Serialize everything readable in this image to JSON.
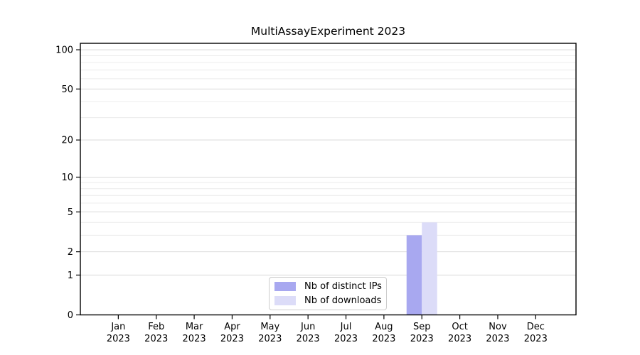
{
  "figure": {
    "title": "MultiAssayExperiment 2023"
  },
  "chart_data": {
    "type": "bar",
    "title": "MultiAssayExperiment 2023",
    "categories": [
      "Jan 2023",
      "Feb 2023",
      "Mar 2023",
      "Apr 2023",
      "May 2023",
      "Jun 2023",
      "Jul 2023",
      "Aug 2023",
      "Sep 2023",
      "Oct 2023",
      "Nov 2023",
      "Dec 2023"
    ],
    "series": [
      {
        "name": "Nb of distinct IPs",
        "color": "#a8a8f0",
        "values": [
          0,
          0,
          0,
          0,
          0,
          0,
          0,
          0,
          3,
          0,
          0,
          0
        ]
      },
      {
        "name": "Nb of downloads",
        "color": "#dcdcf8",
        "values": [
          0,
          0,
          0,
          0,
          0,
          0,
          0,
          0,
          4,
          0,
          0,
          0
        ]
      }
    ],
    "xlabel": "",
    "ylabel": "",
    "yscale": "log1p",
    "ylim": [
      0,
      112
    ],
    "yticks": [
      0,
      1,
      2,
      5,
      10,
      20,
      50,
      100
    ],
    "minor_gridlines": [
      3,
      4,
      6,
      7,
      8,
      9,
      30,
      40,
      60,
      70,
      80,
      90
    ],
    "grid": true,
    "legend_position": "lower center"
  }
}
